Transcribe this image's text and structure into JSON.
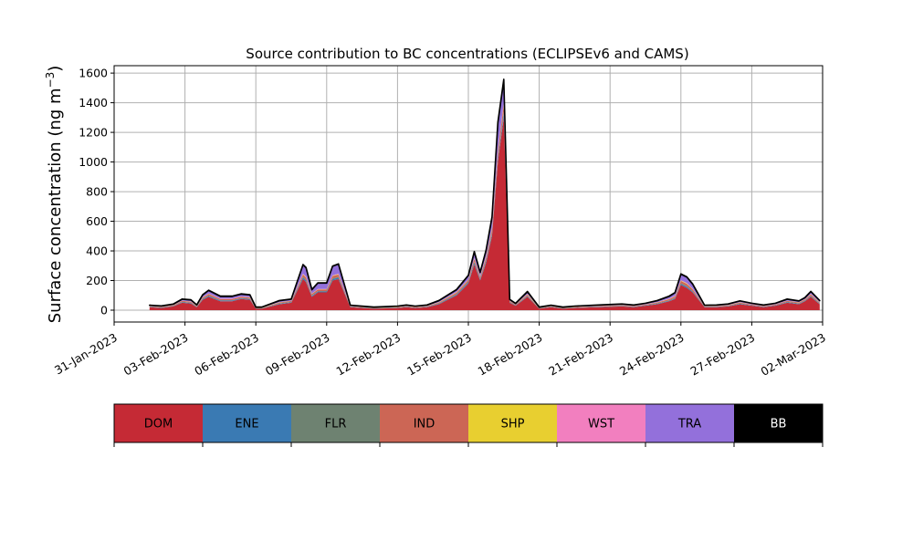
{
  "chart_data": {
    "type": "area",
    "stacked": true,
    "title": "Source contribution to BC concentrations (ECLIPSEv6 and CAMS)",
    "ylabel": "Surface concentration (ng m⁻³)",
    "ylabel_parts": {
      "base": "Surface concentration (ng m",
      "sup": "−3",
      "close": ")"
    },
    "xlim": [
      "2023-01-31",
      "2023-03-02"
    ],
    "ylim": [
      -80,
      1650
    ],
    "y_ticks": [
      0,
      200,
      400,
      600,
      800,
      1000,
      1200,
      1400,
      1600
    ],
    "x_ticks": [
      "2023-01-31",
      "2023-02-03",
      "2023-02-06",
      "2023-02-09",
      "2023-02-12",
      "2023-02-15",
      "2023-02-18",
      "2023-02-21",
      "2023-02-24",
      "2023-02-27",
      "2023-03-02"
    ],
    "x_tick_labels": [
      "31-Jan-2023",
      "03-Feb-2023",
      "06-Feb-2023",
      "09-Feb-2023",
      "12-Feb-2023",
      "15-Feb-2023",
      "18-Feb-2023",
      "21-Feb-2023",
      "24-Feb-2023",
      "27-Feb-2023",
      "02-Mar-2023"
    ],
    "grid": true,
    "x": [
      "2023-02-01T12:00",
      "2023-02-02T00:00",
      "2023-02-02T12:00",
      "2023-02-02T21:00",
      "2023-02-03T06:00",
      "2023-02-03T12:00",
      "2023-02-03T18:00",
      "2023-02-04T00:00",
      "2023-02-04T12:00",
      "2023-02-05T00:00",
      "2023-02-05T09:00",
      "2023-02-05T18:00",
      "2023-02-06T00:00",
      "2023-02-06T06:00",
      "2023-02-07T00:00",
      "2023-02-07T12:00",
      "2023-02-08T00:00",
      "2023-02-08T03:00",
      "2023-02-08T09:00",
      "2023-02-08T15:00",
      "2023-02-09T00:00",
      "2023-02-09T06:00",
      "2023-02-09T12:00",
      "2023-02-10T00:00",
      "2023-02-11T00:00",
      "2023-02-12T00:00",
      "2023-02-12T09:00",
      "2023-02-12T18:00",
      "2023-02-13T06:00",
      "2023-02-13T18:00",
      "2023-02-14T12:00",
      "2023-02-15T00:00",
      "2023-02-15T06:00",
      "2023-02-15T12:00",
      "2023-02-15T18:00",
      "2023-02-16T00:00",
      "2023-02-16T06:00",
      "2023-02-16T12:00",
      "2023-02-16T18:00",
      "2023-02-17T00:00",
      "2023-02-17T12:00",
      "2023-02-18T00:00",
      "2023-02-18T12:00",
      "2023-02-19T00:00",
      "2023-02-19T12:00",
      "2023-02-20T12:00",
      "2023-02-21T12:00",
      "2023-02-22T00:00",
      "2023-02-22T12:00",
      "2023-02-23T00:00",
      "2023-02-23T12:00",
      "2023-02-23T18:00",
      "2023-02-24T00:00",
      "2023-02-24T06:00",
      "2023-02-24T12:00",
      "2023-02-25T00:00",
      "2023-02-25T12:00",
      "2023-02-26T00:00",
      "2023-02-26T12:00",
      "2023-02-27T00:00",
      "2023-02-27T12:00",
      "2023-02-28T00:00",
      "2023-02-28T12:00",
      "2023-03-01T00:00",
      "2023-03-01T06:00",
      "2023-03-01T12:00",
      "2023-03-01T21:00"
    ],
    "series": [
      {
        "name": "DOM",
        "color": "#c52a35",
        "values": [
          20,
          15,
          25,
          50,
          45,
          20,
          70,
          90,
          60,
          60,
          75,
          70,
          10,
          10,
          40,
          50,
          210,
          190,
          90,
          120,
          120,
          200,
          210,
          20,
          10,
          15,
          20,
          15,
          20,
          40,
          100,
          180,
          310,
          200,
          320,
          500,
          1000,
          1300,
          50,
          30,
          90,
          10,
          20,
          10,
          15,
          20,
          25,
          20,
          30,
          40,
          60,
          75,
          170,
          150,
          120,
          20,
          20,
          25,
          40,
          30,
          20,
          30,
          50,
          40,
          60,
          90,
          40
        ]
      },
      {
        "name": "ENE",
        "color": "#3a7ab3",
        "values": [
          3,
          3,
          3,
          4,
          4,
          3,
          5,
          6,
          5,
          5,
          5,
          5,
          2,
          2,
          4,
          4,
          10,
          10,
          6,
          6,
          6,
          10,
          10,
          3,
          2,
          2,
          3,
          2,
          3,
          4,
          6,
          8,
          12,
          8,
          12,
          15,
          20,
          25,
          4,
          3,
          5,
          2,
          3,
          2,
          2,
          3,
          3,
          3,
          3,
          4,
          4,
          5,
          8,
          8,
          6,
          3,
          3,
          3,
          4,
          3,
          3,
          3,
          4,
          4,
          4,
          5,
          4
        ]
      },
      {
        "name": "FLR",
        "color": "#6e8271",
        "values": [
          1,
          1,
          1,
          2,
          2,
          1,
          2,
          3,
          2,
          2,
          2,
          2,
          1,
          1,
          2,
          2,
          5,
          5,
          3,
          3,
          3,
          5,
          5,
          1,
          1,
          1,
          1,
          1,
          1,
          2,
          3,
          4,
          6,
          4,
          6,
          8,
          10,
          12,
          2,
          1,
          2,
          1,
          1,
          1,
          1,
          1,
          1,
          1,
          1,
          2,
          2,
          3,
          4,
          4,
          3,
          1,
          1,
          1,
          2,
          1,
          1,
          1,
          2,
          2,
          2,
          3,
          2
        ]
      },
      {
        "name": "IND",
        "color": "#cc6655",
        "values": [
          3,
          3,
          4,
          6,
          6,
          4,
          8,
          10,
          8,
          8,
          8,
          8,
          2,
          2,
          6,
          6,
          15,
          15,
          10,
          10,
          10,
          15,
          15,
          3,
          2,
          3,
          3,
          3,
          3,
          6,
          10,
          12,
          18,
          12,
          18,
          25,
          40,
          50,
          6,
          4,
          8,
          2,
          3,
          2,
          3,
          3,
          4,
          3,
          4,
          6,
          8,
          10,
          15,
          15,
          12,
          3,
          3,
          4,
          6,
          4,
          3,
          4,
          6,
          6,
          6,
          8,
          6
        ]
      },
      {
        "name": "SHP",
        "color": "#e8cf30",
        "values": [
          1,
          1,
          1,
          1,
          1,
          1,
          1,
          2,
          1,
          1,
          1,
          1,
          1,
          1,
          1,
          1,
          3,
          3,
          2,
          2,
          2,
          3,
          3,
          1,
          1,
          1,
          1,
          1,
          1,
          1,
          2,
          2,
          3,
          2,
          3,
          4,
          5,
          6,
          1,
          1,
          2,
          1,
          1,
          1,
          1,
          1,
          1,
          1,
          1,
          1,
          2,
          2,
          3,
          3,
          2,
          1,
          1,
          1,
          1,
          1,
          1,
          1,
          1,
          1,
          1,
          2,
          1
        ]
      },
      {
        "name": "WST",
        "color": "#f27fbf",
        "values": [
          1,
          1,
          1,
          1,
          1,
          1,
          2,
          2,
          2,
          2,
          2,
          2,
          1,
          1,
          1,
          1,
          3,
          3,
          2,
          2,
          2,
          3,
          3,
          1,
          1,
          1,
          1,
          1,
          1,
          1,
          2,
          3,
          4,
          3,
          4,
          5,
          8,
          10,
          1,
          1,
          2,
          1,
          1,
          1,
          1,
          1,
          1,
          1,
          1,
          1,
          2,
          2,
          3,
          3,
          2,
          1,
          1,
          1,
          1,
          1,
          1,
          1,
          1,
          1,
          1,
          2,
          1
        ]
      },
      {
        "name": "TRA",
        "color": "#9370db",
        "values": [
          4,
          4,
          5,
          10,
          10,
          5,
          15,
          20,
          15,
          15,
          15,
          15,
          3,
          3,
          10,
          10,
          60,
          60,
          25,
          40,
          40,
          60,
          65,
          4,
          3,
          4,
          5,
          4,
          5,
          10,
          15,
          25,
          40,
          25,
          40,
          70,
          180,
          150,
          8,
          5,
          15,
          3,
          4,
          3,
          4,
          5,
          6,
          5,
          6,
          10,
          15,
          20,
          40,
          40,
          30,
          4,
          5,
          6,
          8,
          6,
          5,
          6,
          10,
          8,
          10,
          15,
          10
        ]
      },
      {
        "name": "BB",
        "color": "#000000",
        "values": [
          1,
          1,
          1,
          1,
          1,
          1,
          2,
          2,
          2,
          2,
          2,
          2,
          1,
          1,
          1,
          1,
          2,
          2,
          2,
          2,
          2,
          2,
          2,
          1,
          1,
          1,
          1,
          1,
          1,
          1,
          2,
          2,
          3,
          2,
          3,
          3,
          5,
          5,
          1,
          1,
          2,
          1,
          1,
          1,
          1,
          1,
          1,
          1,
          1,
          1,
          2,
          2,
          2,
          2,
          2,
          1,
          1,
          1,
          1,
          1,
          1,
          1,
          1,
          1,
          1,
          2,
          1
        ]
      }
    ],
    "legend": {
      "placement": "below",
      "entries": [
        {
          "label": "DOM",
          "color": "#c52a35",
          "text_color": "#000000"
        },
        {
          "label": "ENE",
          "color": "#3a7ab3",
          "text_color": "#000000"
        },
        {
          "label": "FLR",
          "color": "#6e8271",
          "text_color": "#000000"
        },
        {
          "label": "IND",
          "color": "#cc6655",
          "text_color": "#000000"
        },
        {
          "label": "SHP",
          "color": "#e8cf30",
          "text_color": "#000000"
        },
        {
          "label": "WST",
          "color": "#f27fbf",
          "text_color": "#000000"
        },
        {
          "label": "TRA",
          "color": "#9370db",
          "text_color": "#000000"
        },
        {
          "label": "BB",
          "color": "#000000",
          "text_color": "#ffffff"
        }
      ]
    }
  }
}
